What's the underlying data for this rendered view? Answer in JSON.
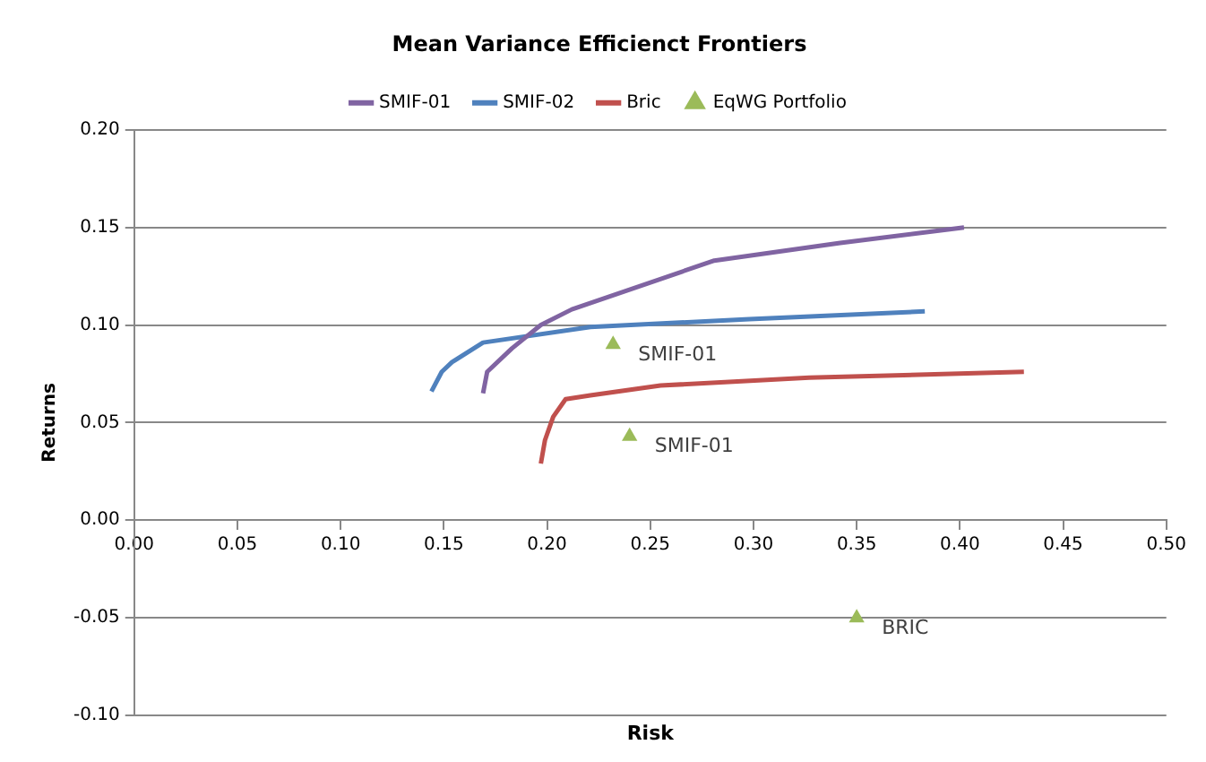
{
  "chart_data": {
    "type": "line",
    "title": "Mean Variance Efficienct Frontiers",
    "xlabel": "Risk",
    "ylabel": "Returns",
    "xlim": [
      0,
      0.5
    ],
    "xticks": [
      {
        "value": 0,
        "label": "0.00"
      },
      {
        "value": 0.05,
        "label": "0.05"
      },
      {
        "value": 0.1,
        "label": "0.10"
      },
      {
        "value": 0.15,
        "label": "0.15"
      },
      {
        "value": 0.2,
        "label": "0.20"
      },
      {
        "value": 0.25,
        "label": "0.25"
      },
      {
        "value": 0.3,
        "label": "0.30"
      },
      {
        "value": 0.35,
        "label": "0.35"
      },
      {
        "value": 0.4,
        "label": "0.40"
      },
      {
        "value": 0.45,
        "label": "0.45"
      },
      {
        "value": 0.5,
        "label": "0.50"
      }
    ],
    "ylim": [
      -0.1,
      0.2
    ],
    "yticks": [
      {
        "value": -0.1,
        "label": "-0.10"
      },
      {
        "value": -0.05,
        "label": "-0.05"
      },
      {
        "value": 0,
        "label": "0.00"
      },
      {
        "value": 0.05,
        "label": "0.05"
      },
      {
        "value": 0.1,
        "label": "0.10"
      },
      {
        "value": 0.15,
        "label": "0.15"
      },
      {
        "value": 0.2,
        "label": "0.20"
      }
    ],
    "grid": "y",
    "legend": "top",
    "series": [
      {
        "name": "SMIF-01",
        "marker": "none",
        "color": "#8064a2",
        "x": [
          0.169,
          0.171,
          0.183,
          0.197,
          0.212,
          0.281,
          0.342,
          0.402
        ],
        "values": [
          0.065,
          0.076,
          0.088,
          0.1,
          0.108,
          0.133,
          0.142,
          0.15
        ]
      },
      {
        "name": "SMIF-02",
        "marker": "none",
        "color": "#4f81bd",
        "x": [
          0.144,
          0.149,
          0.154,
          0.169,
          0.221,
          0.298,
          0.383
        ],
        "values": [
          0.066,
          0.076,
          0.081,
          0.091,
          0.099,
          0.103,
          0.107
        ]
      },
      {
        "name": "Bric",
        "marker": "none",
        "color": "#c0504d",
        "x": [
          0.197,
          0.199,
          0.203,
          0.209,
          0.221,
          0.255,
          0.327,
          0.431
        ],
        "values": [
          0.029,
          0.041,
          0.053,
          0.062,
          0.064,
          0.069,
          0.073,
          0.076
        ]
      },
      {
        "name": "EqWG Portfolio",
        "type": "scatter",
        "marker": "triangle",
        "color": "#9bbb59",
        "x": [
          0.232,
          0.24,
          0.35
        ],
        "values": [
          0.09,
          0.043,
          -0.05
        ]
      }
    ],
    "annotations": [
      {
        "text": "SMIF-01",
        "x": 0.232,
        "y": 0.09
      },
      {
        "text": "SMIF-01",
        "x": 0.24,
        "y": 0.043
      },
      {
        "text": "BRIC",
        "x": 0.35,
        "y": -0.05
      }
    ]
  }
}
